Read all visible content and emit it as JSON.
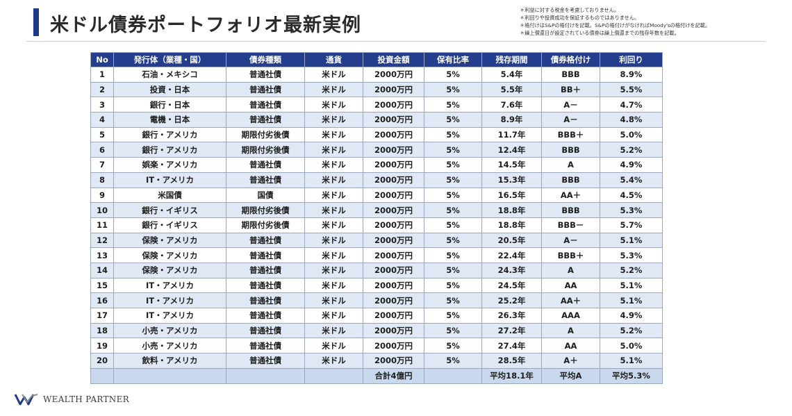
{
  "header": {
    "title": "米ドル債券ポートフォリオ最新実例",
    "notes": [
      "＊利益に対する税金を考慮しておりません。",
      "＊利回りや投資成功を保証するものではありません。",
      "＊格付けはS&Pの格付けを記載。S&Pの格付けがなければMoody'sの格付けを記載。",
      "＊繰上償還日が設定されている債券は繰上償還までの残存年数を記載。"
    ]
  },
  "table": {
    "columns": [
      "No",
      "発行体（業種・国）",
      "債券種類",
      "通貨",
      "投資金額",
      "保有比率",
      "残存期間",
      "債券格付け",
      "利回り"
    ],
    "rows": [
      [
        "1",
        "石油・メキシコ",
        "普通社債",
        "米ドル",
        "2000万円",
        "5%",
        "5.4年",
        "BBB",
        "8.9%"
      ],
      [
        "2",
        "投資・日本",
        "普通社債",
        "米ドル",
        "2000万円",
        "5%",
        "5.5年",
        "BB＋",
        "5.5%"
      ],
      [
        "3",
        "銀行・日本",
        "普通社債",
        "米ドル",
        "2000万円",
        "5%",
        "7.6年",
        "A－",
        "4.7%"
      ],
      [
        "4",
        "電機・日本",
        "普通社債",
        "米ドル",
        "2000万円",
        "5%",
        "8.9年",
        "A－",
        "4.8%"
      ],
      [
        "5",
        "銀行・アメリカ",
        "期限付劣後債",
        "米ドル",
        "2000万円",
        "5%",
        "11.7年",
        "BBB＋",
        "5.0%"
      ],
      [
        "6",
        "銀行・アメリカ",
        "期限付劣後債",
        "米ドル",
        "2000万円",
        "5%",
        "12.4年",
        "BBB",
        "5.2%"
      ],
      [
        "7",
        "娯楽・アメリカ",
        "普通社債",
        "米ドル",
        "2000万円",
        "5%",
        "14.5年",
        "A",
        "4.9%"
      ],
      [
        "8",
        "IT・アメリカ",
        "普通社債",
        "米ドル",
        "2000万円",
        "5%",
        "15.3年",
        "BBB",
        "5.4%"
      ],
      [
        "9",
        "米国債",
        "国債",
        "米ドル",
        "2000万円",
        "5%",
        "16.5年",
        "AA＋",
        "4.5%"
      ],
      [
        "10",
        "銀行・イギリス",
        "期限付劣後債",
        "米ドル",
        "2000万円",
        "5%",
        "18.8年",
        "BBB",
        "5.3%"
      ],
      [
        "11",
        "銀行・イギリス",
        "期限付劣後債",
        "米ドル",
        "2000万円",
        "5%",
        "18.8年",
        "BBB－",
        "5.7%"
      ],
      [
        "12",
        "保険・アメリカ",
        "普通社債",
        "米ドル",
        "2000万円",
        "5%",
        "20.5年",
        "A－",
        "5.1%"
      ],
      [
        "13",
        "保険・アメリカ",
        "普通社債",
        "米ドル",
        "2000万円",
        "5%",
        "22.4年",
        "BBB＋",
        "5.3%"
      ],
      [
        "14",
        "保険・アメリカ",
        "普通社債",
        "米ドル",
        "2000万円",
        "5%",
        "24.3年",
        "A",
        "5.2%"
      ],
      [
        "15",
        "IT・アメリカ",
        "普通社債",
        "米ドル",
        "2000万円",
        "5%",
        "24.5年",
        "AA",
        "5.1%"
      ],
      [
        "16",
        "IT・アメリカ",
        "普通社債",
        "米ドル",
        "2000万円",
        "5%",
        "25.2年",
        "AA＋",
        "5.1%"
      ],
      [
        "17",
        "IT・アメリカ",
        "普通社債",
        "米ドル",
        "2000万円",
        "5%",
        "26.3年",
        "AAA",
        "4.9%"
      ],
      [
        "18",
        "小売・アメリカ",
        "普通社債",
        "米ドル",
        "2000万円",
        "5%",
        "27.2年",
        "A",
        "5.2%"
      ],
      [
        "19",
        "小売・アメリカ",
        "普通社債",
        "米ドル",
        "2000万円",
        "5%",
        "27.4年",
        "AA",
        "5.0%"
      ],
      [
        "20",
        "飲料・アメリカ",
        "普通社債",
        "米ドル",
        "2000万円",
        "5%",
        "28.5年",
        "A＋",
        "5.1%"
      ]
    ],
    "footer": [
      "",
      "",
      "",
      "",
      "合計4億円",
      "",
      "平均18.1年",
      "平均A",
      "平均5.3%"
    ]
  },
  "logo": {
    "text": "WEALTH PARTNER",
    "icon": "wealth-partner-w-logo-icon"
  },
  "colors": {
    "accent": "#1f3a8a",
    "header_bg": "#243d8c",
    "row_alt": "#dfe8f4",
    "footer_bg": "#c9d8ec"
  }
}
